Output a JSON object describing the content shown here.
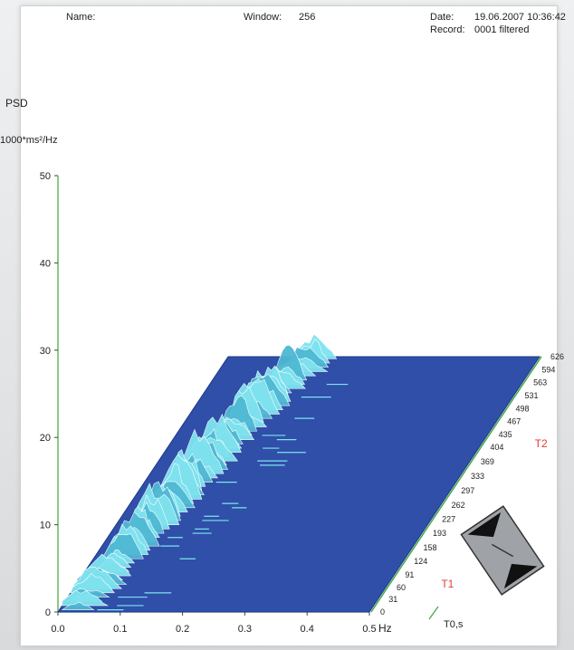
{
  "header": {
    "name_label": "Name:",
    "window_label": "Window:",
    "window_value": "256",
    "date_label": "Date:",
    "date_value": "19.06.2007 10:36:42",
    "record_label": "Record:",
    "record_value": "0001 filtered"
  },
  "colors": {
    "plane": "#2f4fa8",
    "plane_edge": "#1d3788",
    "ridge_light": "#7fe3ef",
    "ridge_mid": "#4fb8d4",
    "ridge_white": "#ffffff",
    "axis_green": "#3aa83a",
    "marker_red": "#e53a3a"
  },
  "chart_data": {
    "type": "area",
    "title": "",
    "ylabel": "PSD",
    "yunit": "1000*ms²/Hz",
    "xlabel": "Hz",
    "zlabel": "T0,s",
    "x_ticks": [
      "0.0",
      "0.1",
      "0.2",
      "0.3",
      "0.4",
      "0.5"
    ],
    "y_ticks": [
      "0",
      "10",
      "20",
      "30",
      "40",
      "50"
    ],
    "z_ticks": [
      "0",
      "31",
      "60",
      "91",
      "124",
      "158",
      "193",
      "227",
      "262",
      "297",
      "333",
      "369",
      "404",
      "435",
      "467",
      "498",
      "531",
      "563",
      "594",
      "626"
    ],
    "xlim": [
      0,
      0.5
    ],
    "ylim": [
      0,
      50
    ],
    "zlim": [
      0,
      626
    ],
    "markers": [
      {
        "label": "T1",
        "z": 91
      },
      {
        "label": "T2",
        "z": 435
      }
    ],
    "series": [
      {
        "x": [
          0.03,
          0.05,
          0.07,
          0.085,
          0.1,
          0.12,
          0.14
        ],
        "peak_z": [
          30,
          150,
          260,
          390,
          470,
          560,
          610
        ],
        "peak_y": [
          1.5,
          3,
          4,
          5,
          4,
          3.5,
          3
        ]
      }
    ]
  }
}
